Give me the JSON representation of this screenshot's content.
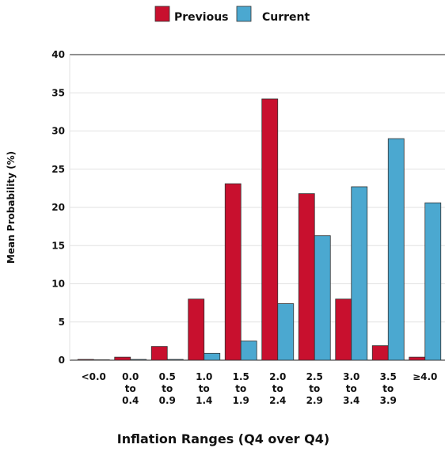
{
  "chart_data": {
    "type": "bar",
    "x_label": "Inflation Ranges (Q4 over Q4)",
    "y_label": "Mean Probability (%)",
    "categories": [
      [
        "<0.0"
      ],
      [
        "0.0",
        "to",
        "0.4"
      ],
      [
        "0.5",
        "to",
        "0.9"
      ],
      [
        "1.0",
        "to",
        "1.4"
      ],
      [
        "1.5",
        "to",
        "1.9"
      ],
      [
        "2.0",
        "to",
        "2.4"
      ],
      [
        "2.5",
        "to",
        "2.9"
      ],
      [
        "3.0",
        "to",
        "3.4"
      ],
      [
        "3.5",
        "to",
        "3.9"
      ],
      [
        "≥4.0"
      ]
    ],
    "series": [
      {
        "name": "Previous",
        "color": "#c8102e",
        "values": [
          0.1,
          0.4,
          1.8,
          8.0,
          23.1,
          34.2,
          21.8,
          8.0,
          1.9,
          0.4
        ]
      },
      {
        "name": "Current",
        "color": "#4ba8d0",
        "values": [
          0.05,
          0.1,
          0.1,
          0.9,
          2.5,
          7.4,
          16.3,
          22.7,
          29.0,
          20.6
        ]
      }
    ],
    "ylim": [
      0,
      40
    ],
    "yticks": [
      0,
      5,
      10,
      15,
      20,
      25,
      30,
      35,
      40
    ],
    "grid": true
  }
}
